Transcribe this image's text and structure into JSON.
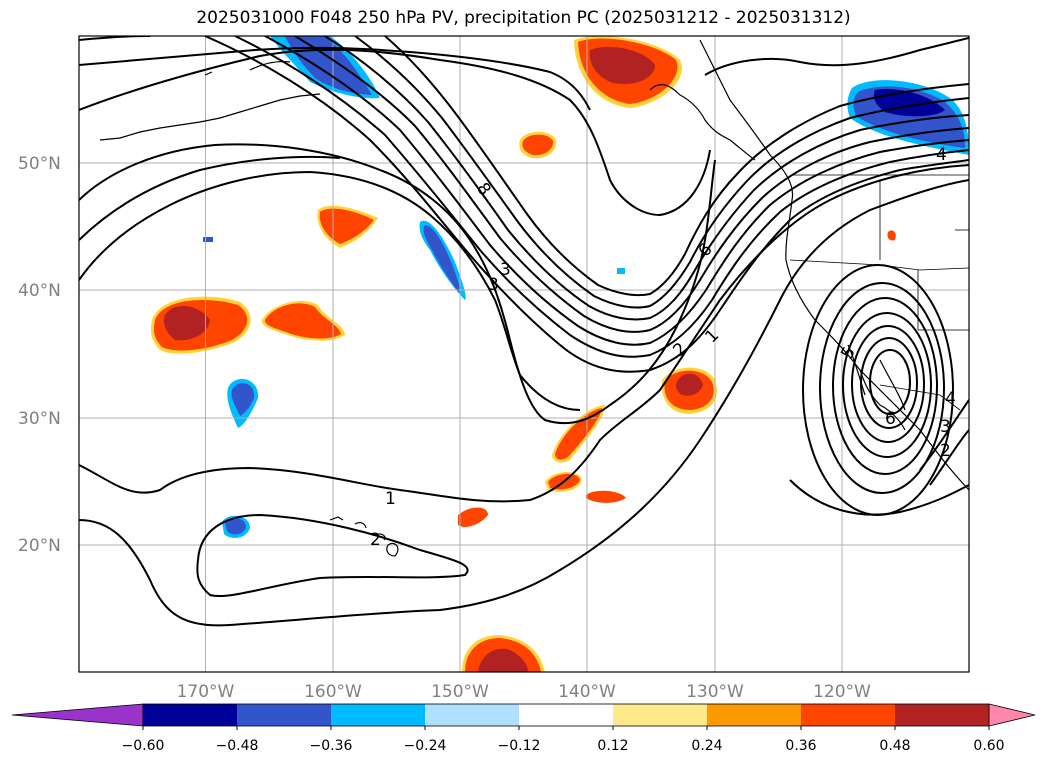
{
  "title": "2025031000 F048 250 hPa PV, precipitation PC (2025031212 - 2025031312)",
  "map": {
    "lat_labels": [
      "50°N",
      "40°N",
      "30°N",
      "20°N"
    ],
    "lon_labels": [
      "170°W",
      "160°W",
      "150°W",
      "140°W",
      "130°W",
      "120°W"
    ],
    "contour_labels": [
      "8",
      "3",
      "3",
      "6",
      "2",
      "1",
      "1",
      "2",
      "4",
      "5",
      "6",
      "4",
      "3",
      "2"
    ]
  },
  "colorbar": {
    "ticks": [
      "−0.60",
      "−0.48",
      "−0.36",
      "−0.24",
      "−0.12",
      "0.12",
      "0.24",
      "0.36",
      "0.48",
      "0.60"
    ],
    "colors": [
      "#9933cc",
      "#000099",
      "#3355cc",
      "#00bbff",
      "#b0e0ff",
      "#ffffff",
      "#ffe98a",
      "#ff9900",
      "#ff4400",
      "#b22222",
      "#ff88aa"
    ]
  },
  "colors": {
    "grid": "#b0b0b0",
    "contour": "#000000",
    "coast": "#000000",
    "tick_text": "#808080"
  }
}
